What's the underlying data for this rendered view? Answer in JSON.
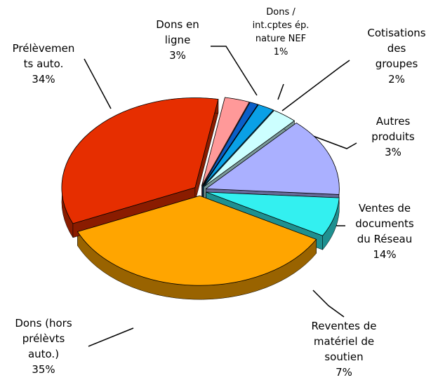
{
  "chart_data": {
    "type": "pie",
    "categories": [
      "Dons en\nligne",
      "Dons /\nint.cptes ép.\nnature NEF",
      "Cotisations\ndes groupes",
      "Autres\nproduits",
      "Ventes de\ndocuments\ndu Réseau",
      "Reventes de\nmatériel de\nsoutien",
      "Dons (hors\nprélèvts\nauto.)",
      "Prélèvemen\nts auto."
    ],
    "values": [
      3,
      1,
      2,
      3,
      14,
      7,
      35,
      34
    ],
    "value_labels": [
      "3%",
      "1%",
      "2%",
      "3%",
      "14%",
      "7%",
      "35%",
      "34%"
    ],
    "colors": [
      "#ff9999",
      "#0a5fc8",
      "#0aa0e6",
      "#ccffff",
      "#aab0ff",
      "#33f0f0",
      "#ffa500",
      "#e62e00"
    ]
  }
}
